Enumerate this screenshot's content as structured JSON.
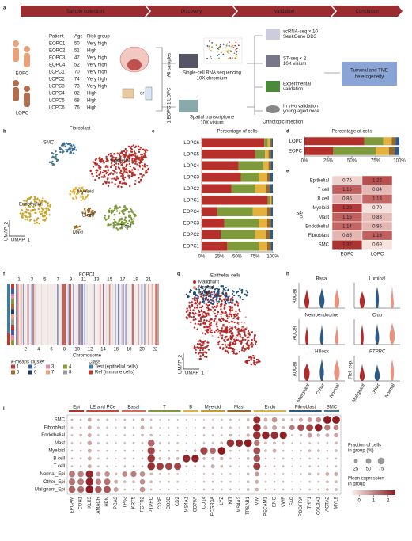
{
  "panels": [
    "a",
    "b",
    "c",
    "d",
    "e",
    "f",
    "g",
    "h",
    "i"
  ],
  "a": {
    "stages": [
      "Sample collection",
      "Discovery",
      "Validation",
      "Conclusion"
    ],
    "table": {
      "header": [
        "Patient",
        "Age",
        "Risk group"
      ],
      "rows": [
        [
          "EOPC1",
          50,
          "Very high"
        ],
        [
          "EOPC2",
          51,
          "High"
        ],
        [
          "EOPC3",
          47,
          "Very high"
        ],
        [
          "EOPC4",
          52,
          "Very high"
        ],
        [
          "LOPC1",
          70,
          "Very high"
        ],
        [
          "LOPC2",
          74,
          "Very high"
        ],
        [
          "LOPC3",
          73,
          "Very high"
        ],
        [
          "LOPC4",
          82,
          "High"
        ],
        [
          "LOPC5",
          68,
          "High"
        ],
        [
          "LOPC6",
          76,
          "High"
        ]
      ]
    },
    "groups": [
      "EOPC",
      "LOPC"
    ],
    "or": "or",
    "branches": [
      "All samples",
      "1 EOPC 1 LOPC"
    ],
    "methods": [
      [
        "Single-cell RNA sequencing",
        "10X chromium"
      ],
      [
        "Spatial transcriptome",
        "10X visium"
      ]
    ],
    "validation": [
      [
        "scRNA-seq × 10",
        "SeekGene DD3"
      ],
      [
        "ST-seq × 2",
        "10X visium"
      ],
      [
        "Experimental",
        "validation"
      ],
      [
        "In vivo validation",
        "young/aged mice"
      ]
    ],
    "injection": "Orthotopic injection",
    "conclusion": [
      "Tumoral and TME",
      "heterogeneity"
    ]
  },
  "b": {
    "labels": [
      "Fibroblast",
      "SMC",
      "Epithelial",
      "Endothelial",
      "Myeloid",
      "B cell",
      "T cell",
      "Mast"
    ],
    "x_label": "UMAP_1",
    "y_label": "UMAP_2"
  },
  "e": {
    "symbol": "R",
    "subscript": "o/e",
    "columns": [
      "EOPC",
      "LOPC"
    ],
    "rows": [
      {
        "name": "Epithelial",
        "values": [
          "0.75",
          "1.22"
        ]
      },
      {
        "name": "T cell",
        "values": [
          "1.16",
          "0.84"
        ]
      },
      {
        "name": "B cell",
        "values": [
          "0.86",
          "1.13"
        ]
      },
      {
        "name": "Myeloid",
        "values": [
          "1.29",
          "0.70"
        ]
      },
      {
        "name": "Mast",
        "values": [
          "1.16",
          "0.83"
        ]
      },
      {
        "name": "Endothelial",
        "values": [
          "1.14",
          "0.85"
        ]
      },
      {
        "name": "Fibroblast",
        "values": [
          "0.85",
          "1.16"
        ]
      },
      {
        "name": "SMC",
        "values": [
          "1.32",
          "0.69"
        ]
      }
    ]
  },
  "f": {
    "title": "EOPC1",
    "chromosomes_top": [
      1,
      3,
      5,
      7,
      9,
      11,
      13,
      15,
      17,
      19,
      21
    ],
    "chromosomes_bottom": [
      2,
      4,
      6,
      8,
      10,
      12,
      14,
      16,
      18,
      20,
      22
    ],
    "x_label": "Chromosome",
    "kmeans_title": "k-means cluster",
    "clusters": [
      1,
      2,
      3,
      4,
      5,
      6,
      7,
      8
    ],
    "cluster_colors": [
      "#c0392b",
      "#3b5ea8",
      "#e08aa0",
      "#8a9a3a",
      "#a8692c",
      "#1f3a68",
      "#e6a37a",
      "#9a9a9a"
    ],
    "class_title": "Class",
    "classes": [
      {
        "name": "Test (epithelial cells)",
        "color": "#3b7fa8"
      },
      {
        "name": "Ref (immune cells)",
        "color": "#c0392b"
      }
    ]
  },
  "g": {
    "title": "Epithelial cells",
    "legend": [
      {
        "name": "Malignant",
        "color": "#b22b2b"
      },
      {
        "name": "Normal",
        "color": "#e8937d"
      },
      {
        "name": "Other",
        "color": "#1f4e79"
      }
    ],
    "x_label": "UMAP_1",
    "y_label": "UMAP_2"
  },
  "h": {
    "plots": [
      {
        "title": "Basal",
        "y_label": "AUCell"
      },
      {
        "title": "Luminal"
      },
      {
        "title": "Neuroendocrine",
        "y_label": "AUCell"
      },
      {
        "title": "Club"
      },
      {
        "title": "Hillock",
        "y_label": "AUCell"
      },
      {
        "title": "PTPRC",
        "y_label": "Rel. exp."
      }
    ],
    "groups": [
      "Malignant",
      "Other",
      "Normal"
    ],
    "colors": [
      "#b22b2b",
      "#2e5b86",
      "#e8937d"
    ]
  },
  "chart_data": [
    {
      "type": "bar",
      "title": "Percentage of cells",
      "categories": [
        "LOPC6",
        "LOPC5",
        "LOPC4",
        "LOPC3",
        "LOPC2",
        "LOPC1",
        "EOPC4",
        "EOPC3",
        "EOPC2",
        "EOPC1"
      ],
      "series": [
        {
          "color": "#b5302a",
          "values": [
            88,
            75,
            52,
            55,
            42,
            93,
            22,
            32,
            27,
            36
          ]
        },
        {
          "color": "#7f9a3d",
          "values": [
            5,
            14,
            35,
            25,
            33,
            3,
            50,
            48,
            48,
            44
          ]
        },
        {
          "color": "#e3b23c",
          "values": [
            3,
            5,
            7,
            12,
            15,
            2,
            20,
            12,
            15,
            12
          ]
        },
        {
          "color": "#9a6a2c",
          "values": [
            2,
            3,
            3,
            4,
            6,
            1,
            5,
            5,
            6,
            5
          ]
        },
        {
          "color": "#2e5b86",
          "values": [
            2,
            3,
            3,
            4,
            4,
            1,
            3,
            3,
            4,
            3
          ]
        }
      ],
      "xlim": [
        0,
        100
      ],
      "xticks": [
        {
          "value": 0,
          "label": "0%"
        },
        {
          "value": 25,
          "label": "25%"
        },
        {
          "value": 50,
          "label": "50%"
        },
        {
          "value": 75,
          "label": "75%"
        },
        {
          "value": 100,
          "label": "100%"
        }
      ]
    },
    {
      "type": "bar",
      "title": "Percentage of cells",
      "categories": [
        "LOPC",
        "EOPC"
      ],
      "series": [
        {
          "color": "#b5302a",
          "values": [
            63,
            30
          ]
        },
        {
          "color": "#7f9a3d",
          "values": [
            20,
            45
          ]
        },
        {
          "color": "#e3b23c",
          "values": [
            9,
            14
          ]
        },
        {
          "color": "#9a6a2c",
          "values": [
            4,
            6
          ]
        },
        {
          "color": "#2e5b86",
          "values": [
            4,
            5
          ]
        }
      ],
      "xlim": [
        0,
        100
      ],
      "xticks": [
        {
          "value": 0,
          "label": "0%"
        },
        {
          "value": 25,
          "label": "25%"
        },
        {
          "value": 50,
          "label": "50%"
        },
        {
          "value": 75,
          "label": "75%"
        },
        {
          "value": 100,
          "label": "100%"
        }
      ]
    },
    {
      "type": "dot",
      "categories": [
        "SMC",
        "Fibroblast",
        "Endothelial",
        "Mast",
        "Myeloid",
        "B cell",
        "T cell",
        "Normal_Epi",
        "Other_Epi",
        "Malignant_Epi"
      ],
      "groups": [
        {
          "name": "Epi",
          "color": "#b5302a",
          "genes": [
            "EPCAM",
            "CDH1"
          ]
        },
        {
          "name": "LE and PCe",
          "color": "#c24a3a",
          "genes": [
            "KLK3",
            "AMACR",
            "HPN",
            "PCA3"
          ]
        },
        {
          "name": "Basal",
          "color": "#d46a5a",
          "genes": [
            "TP63",
            "KRT5",
            "FGFR2"
          ]
        },
        {
          "name": "T",
          "color": "#7f9a3d",
          "genes": [
            "PTPRC",
            "CD3E",
            "CD3D",
            "CD2"
          ]
        },
        {
          "name": "B",
          "color": "#e3b23c",
          "genes": [
            "MS4A1",
            "CD79A"
          ]
        },
        {
          "name": "Myeloid",
          "color": "#c99a2e",
          "genes": [
            "CD14",
            "FCGR3A",
            "LYZ"
          ]
        },
        {
          "name": "Mast",
          "color": "#9a6a2c",
          "genes": [
            "KIT",
            "MS4A2",
            "TPSAB1"
          ]
        },
        {
          "name": "Endo",
          "color": "#d8b04a",
          "genes": [
            "VIM",
            "PECAM1",
            "ENG",
            "VWF"
          ]
        },
        {
          "name": "Fibroblast",
          "color": "#2e5b86",
          "genes": [
            "FAP",
            "PDGFRA",
            "THY1",
            "COL3A1"
          ]
        },
        {
          "name": "SMC",
          "color": "#4b7a8a",
          "genes": [
            "ACTA2",
            "MYL9"
          ]
        }
      ],
      "fraction": [
        [
          5,
          5,
          20,
          5,
          5,
          2,
          5,
          5,
          15,
          5,
          2,
          2,
          2,
          2,
          2,
          2,
          2,
          5,
          5,
          2,
          10,
          80,
          20,
          40,
          10,
          10,
          20,
          30,
          40,
          95,
          95
        ],
        [
          5,
          5,
          20,
          5,
          5,
          2,
          5,
          5,
          20,
          5,
          2,
          2,
          2,
          2,
          2,
          5,
          5,
          5,
          5,
          2,
          10,
          90,
          20,
          30,
          10,
          40,
          70,
          75,
          90,
          50,
          40
        ],
        [
          5,
          10,
          20,
          5,
          5,
          2,
          5,
          5,
          10,
          10,
          2,
          2,
          2,
          2,
          2,
          5,
          5,
          5,
          10,
          2,
          15,
          90,
          90,
          85,
          85,
          5,
          10,
          30,
          15,
          20,
          25
        ],
        [
          5,
          5,
          25,
          5,
          5,
          2,
          5,
          5,
          5,
          70,
          5,
          5,
          5,
          2,
          2,
          5,
          5,
          10,
          90,
          85,
          95,
          50,
          10,
          10,
          5,
          2,
          2,
          5,
          5,
          5,
          10
        ],
        [
          5,
          5,
          20,
          5,
          5,
          2,
          5,
          5,
          5,
          85,
          5,
          5,
          5,
          5,
          10,
          85,
          60,
          95,
          5,
          2,
          10,
          75,
          10,
          20,
          5,
          2,
          5,
          10,
          10,
          5,
          10
        ],
        [
          5,
          5,
          20,
          5,
          5,
          2,
          5,
          5,
          5,
          90,
          10,
          10,
          10,
          90,
          90,
          10,
          10,
          15,
          5,
          2,
          10,
          70,
          5,
          5,
          5,
          2,
          2,
          5,
          5,
          5,
          5
        ],
        [
          5,
          5,
          20,
          5,
          5,
          2,
          5,
          5,
          5,
          90,
          85,
          80,
          80,
          5,
          5,
          5,
          20,
          10,
          5,
          2,
          5,
          80,
          5,
          5,
          5,
          2,
          2,
          5,
          5,
          5,
          5
        ],
        [
          60,
          55,
          90,
          30,
          40,
          10,
          40,
          50,
          40,
          10,
          5,
          5,
          5,
          2,
          2,
          5,
          5,
          5,
          5,
          2,
          10,
          30,
          5,
          5,
          5,
          2,
          5,
          10,
          10,
          20,
          20
        ],
        [
          65,
          60,
          90,
          50,
          60,
          20,
          10,
          10,
          40,
          10,
          5,
          5,
          5,
          2,
          2,
          5,
          5,
          5,
          5,
          2,
          10,
          20,
          5,
          5,
          5,
          2,
          2,
          5,
          5,
          10,
          10
        ],
        [
          70,
          65,
          95,
          70,
          75,
          30,
          5,
          5,
          40,
          5,
          2,
          2,
          2,
          2,
          2,
          5,
          5,
          5,
          5,
          2,
          10,
          15,
          5,
          5,
          5,
          2,
          2,
          5,
          5,
          10,
          10
        ]
      ],
      "expression": [
        [
          0.2,
          0.2,
          0.5,
          0.2,
          0.2,
          0.1,
          0.2,
          0.2,
          0.4,
          0.2,
          0.1,
          0.1,
          0.1,
          0.1,
          0.1,
          0.1,
          0.1,
          0.2,
          0.2,
          0.1,
          0.3,
          2.2,
          0.4,
          0.8,
          0.3,
          0.3,
          0.5,
          0.7,
          0.9,
          2.6,
          2.6
        ],
        [
          0.2,
          0.2,
          0.5,
          0.2,
          0.2,
          0.1,
          0.2,
          0.2,
          0.5,
          0.2,
          0.1,
          0.1,
          0.1,
          0.1,
          0.1,
          0.2,
          0.2,
          0.2,
          0.2,
          0.1,
          0.3,
          2.4,
          0.4,
          0.6,
          0.3,
          1.2,
          1.8,
          1.9,
          2.5,
          1.2,
          1.0
        ],
        [
          0.2,
          0.3,
          0.5,
          0.2,
          0.2,
          0.1,
          0.2,
          0.2,
          0.3,
          0.3,
          0.1,
          0.1,
          0.1,
          0.1,
          0.1,
          0.2,
          0.2,
          0.2,
          0.3,
          0.1,
          0.4,
          2.2,
          2.4,
          2.2,
          2.4,
          0.2,
          0.3,
          0.7,
          0.4,
          0.5,
          0.6
        ],
        [
          0.2,
          0.2,
          0.6,
          0.2,
          0.2,
          0.1,
          0.2,
          0.2,
          0.2,
          1.4,
          0.2,
          0.2,
          0.2,
          0.1,
          0.1,
          0.2,
          0.2,
          0.3,
          2.2,
          2.3,
          2.6,
          1.2,
          0.3,
          0.3,
          0.2,
          0.1,
          0.1,
          0.2,
          0.2,
          0.2,
          0.3
        ],
        [
          0.2,
          0.2,
          0.5,
          0.2,
          0.2,
          0.1,
          0.2,
          0.2,
          0.2,
          1.9,
          0.2,
          0.2,
          0.2,
          0.2,
          0.3,
          1.9,
          1.4,
          2.5,
          0.2,
          0.1,
          0.3,
          1.8,
          0.3,
          0.5,
          0.2,
          0.1,
          0.2,
          0.3,
          0.3,
          0.2,
          0.3
        ],
        [
          0.2,
          0.2,
          0.5,
          0.2,
          0.2,
          0.1,
          0.2,
          0.2,
          0.2,
          2.1,
          0.3,
          0.3,
          0.3,
          2.3,
          2.4,
          0.3,
          0.3,
          0.4,
          0.2,
          0.1,
          0.3,
          1.7,
          0.2,
          0.2,
          0.2,
          0.1,
          0.1,
          0.2,
          0.2,
          0.2,
          0.2
        ],
        [
          0.2,
          0.2,
          0.5,
          0.2,
          0.2,
          0.1,
          0.2,
          0.2,
          0.2,
          2.2,
          2.0,
          1.9,
          1.9,
          0.2,
          0.2,
          0.2,
          0.5,
          0.3,
          0.2,
          0.1,
          0.2,
          2.0,
          0.2,
          0.2,
          0.2,
          0.1,
          0.1,
          0.2,
          0.2,
          0.2,
          0.2
        ],
        [
          1.2,
          1.1,
          2.3,
          0.7,
          0.9,
          0.3,
          1.0,
          1.2,
          0.9,
          0.3,
          0.2,
          0.2,
          0.2,
          0.1,
          0.1,
          0.2,
          0.2,
          0.2,
          0.2,
          0.1,
          0.3,
          0.7,
          0.2,
          0.2,
          0.2,
          0.1,
          0.2,
          0.3,
          0.3,
          0.5,
          0.5
        ],
        [
          1.3,
          1.2,
          2.4,
          1.1,
          1.3,
          0.5,
          0.3,
          0.3,
          0.9,
          0.3,
          0.2,
          0.2,
          0.2,
          0.1,
          0.1,
          0.2,
          0.2,
          0.2,
          0.2,
          0.1,
          0.3,
          0.5,
          0.2,
          0.2,
          0.2,
          0.1,
          0.1,
          0.2,
          0.2,
          0.3,
          0.3
        ],
        [
          1.5,
          1.4,
          2.5,
          1.6,
          1.7,
          0.7,
          0.2,
          0.2,
          0.9,
          0.2,
          0.1,
          0.1,
          0.1,
          0.1,
          0.1,
          0.2,
          0.2,
          0.2,
          0.2,
          0.1,
          0.3,
          0.4,
          0.2,
          0.2,
          0.2,
          0.1,
          0.1,
          0.2,
          0.2,
          0.3,
          0.3
        ]
      ],
      "size_legend": {
        "title": [
          "Fraction of cells",
          "in group (%)"
        ],
        "values": [
          25,
          50,
          75
        ]
      },
      "color_legend": {
        "title": [
          "Mean expression",
          "in group"
        ],
        "lim": [
          -0.5,
          2.5
        ],
        "ticks": [
          0,
          1,
          2
        ]
      },
      "colors": [
        "#fbf0ec",
        "#8c1a1e"
      ]
    }
  ]
}
